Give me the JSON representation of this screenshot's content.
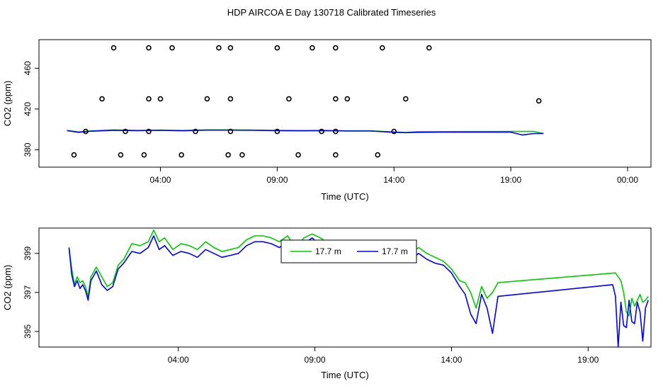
{
  "title": "HDP AIRCOA E  Day 130718  Calibrated Timeseries",
  "chart_data": [
    {
      "type": "scatter",
      "xlabel": "Time (UTC)",
      "ylabel": "CO2 (ppm)",
      "x_unit": "hours UTC",
      "xlim": [
        -1.2,
        25
      ],
      "ylim": [
        363,
        488
      ],
      "x_ticks": [
        4,
        9,
        14,
        19,
        24
      ],
      "x_tick_labels": [
        "04:00",
        "09:00",
        "14:00",
        "19:00",
        "00:00"
      ],
      "y_ticks": [
        380,
        420,
        460
      ],
      "y_tick_labels": [
        "380",
        "420",
        "460"
      ],
      "grid": false,
      "points": {
        "x": [
          2.0,
          3.5,
          4.5,
          6.5,
          7.0,
          9.0,
          10.5,
          11.5,
          13.5,
          15.5,
          1.5,
          3.5,
          4.0,
          6.0,
          7.0,
          9.5,
          11.5,
          12.0,
          14.5,
          20.2,
          0.8,
          2.5,
          3.5,
          5.5,
          7.0,
          9.0,
          10.9,
          11.5,
          14.0,
          0.3,
          2.3,
          3.3,
          4.9,
          6.9,
          7.5,
          9.9,
          11.5,
          13.3
        ],
        "y": [
          480,
          480,
          480,
          480,
          480,
          480,
          480,
          480,
          480,
          480,
          430,
          430,
          430,
          430,
          430,
          430,
          430,
          430,
          430,
          428,
          398,
          398,
          398,
          398,
          398,
          398,
          398,
          398,
          398,
          375,
          375,
          375,
          375,
          375,
          375,
          375,
          375,
          375
        ]
      },
      "series": [
        {
          "color": "#00cc00",
          "x": [
            0,
            0.5,
            1,
            2,
            3,
            4,
            5,
            6,
            7,
            8,
            9,
            10,
            11,
            12,
            13,
            14,
            14.5,
            15,
            16,
            17,
            18,
            19,
            20,
            20.4
          ],
          "y": [
            399,
            397.5,
            398.5,
            399.5,
            399,
            399.3,
            399,
            399.5,
            399.5,
            399.3,
            399,
            398.9,
            399,
            398.6,
            398.6,
            397.5,
            397,
            397.8,
            397.8,
            397.9,
            397.9,
            398,
            398,
            396
          ]
        },
        {
          "color": "#0000ff",
          "x": [
            0,
            0.5,
            1,
            2,
            3,
            4,
            5,
            6,
            7,
            8,
            9,
            10,
            11,
            12,
            13,
            14,
            14.5,
            15,
            16,
            17,
            18,
            19,
            19.5,
            20,
            20.4
          ],
          "y": [
            398.8,
            397.2,
            398.2,
            399.2,
            398.8,
            399.1,
            398.7,
            399.3,
            399.3,
            399.1,
            398.8,
            398.6,
            398.8,
            398.4,
            398.4,
            397.2,
            396.8,
            397.2,
            397.3,
            397.3,
            397.3,
            397.3,
            394.5,
            396,
            396
          ]
        }
      ]
    },
    {
      "type": "line",
      "xlabel": "Time (UTC)",
      "ylabel": "CO2 (ppm)",
      "x_unit": "hours UTC",
      "xlim": [
        -1.1,
        21.3
      ],
      "ylim": [
        394.2,
        400.3
      ],
      "x_ticks": [
        4,
        9,
        14,
        19
      ],
      "x_tick_labels": [
        "04:00",
        "09:00",
        "14:00",
        "19:00"
      ],
      "y_ticks": [
        395,
        397,
        399
      ],
      "y_tick_labels": [
        "395",
        "397",
        "399"
      ],
      "grid": false,
      "legend": {
        "placement": "top-center",
        "entries": [
          "17.7 m",
          "17.7 m"
        ]
      },
      "series": [
        {
          "name": "17.7 m",
          "color": "#00cc00",
          "x": [
            0,
            0.1,
            0.2,
            0.3,
            0.4,
            0.5,
            0.6,
            0.7,
            0.8,
            1.0,
            1.2,
            1.4,
            1.6,
            1.8,
            2.0,
            2.3,
            2.6,
            2.9,
            3.1,
            3.3,
            3.5,
            3.8,
            4.1,
            4.4,
            4.7,
            5.0,
            5.3,
            5.6,
            5.9,
            6.2,
            6.5,
            6.8,
            7.1,
            7.4,
            7.7,
            8.0,
            8.3,
            8.6,
            8.9,
            9.2,
            9.5,
            9.8,
            10.1,
            10.4,
            10.7,
            11.0,
            11.3,
            11.6,
            11.9,
            12.2,
            12.5,
            12.8,
            13.1,
            13.4,
            13.7,
            14.0,
            14.3,
            14.5,
            14.7,
            14.9,
            15.1,
            15.3,
            15.5,
            15.7,
            20.0,
            20.2,
            20.3,
            20.4,
            20.5,
            20.6,
            20.7,
            20.8,
            20.9,
            21.0,
            21.1,
            21.2
          ],
          "y": [
            399.3,
            398.2,
            397.4,
            397.8,
            397.5,
            397.6,
            397.3,
            396.8,
            397.8,
            398.3,
            397.8,
            397.3,
            397.5,
            398.4,
            398.7,
            399.5,
            399.4,
            399.6,
            400.2,
            399.6,
            399.8,
            399.2,
            399.5,
            399.4,
            399.2,
            399.6,
            399.3,
            399.1,
            399.2,
            399.3,
            399.7,
            399.9,
            399.9,
            399.8,
            399.6,
            399.9,
            399.3,
            399.8,
            400.0,
            399.8,
            399.5,
            399.4,
            399.2,
            398.9,
            399.3,
            399.4,
            399.6,
            399.1,
            399.1,
            399.3,
            399.0,
            399.3,
            399.0,
            398.8,
            398.6,
            398.2,
            397.6,
            397.5,
            397.0,
            396.2,
            397.3,
            396.7,
            397.0,
            397.5,
            398.0,
            397.6,
            397.0,
            396.0,
            395.8,
            396.7,
            396.3,
            396.6,
            396.9,
            396.5,
            396.6,
            396.8
          ]
        },
        {
          "name": "17.7 m",
          "color": "#0000ff",
          "x": [
            0,
            0.1,
            0.2,
            0.3,
            0.4,
            0.5,
            0.6,
            0.7,
            0.8,
            1.0,
            1.2,
            1.4,
            1.6,
            1.8,
            2.0,
            2.3,
            2.6,
            2.9,
            3.1,
            3.3,
            3.5,
            3.8,
            4.1,
            4.4,
            4.7,
            5.0,
            5.3,
            5.6,
            5.9,
            6.2,
            6.5,
            6.8,
            7.1,
            7.4,
            7.7,
            8.0,
            8.3,
            8.6,
            8.9,
            9.2,
            9.5,
            9.8,
            10.1,
            10.4,
            10.7,
            11.0,
            11.3,
            11.6,
            11.9,
            12.2,
            12.5,
            12.8,
            13.1,
            13.4,
            13.7,
            14.0,
            14.3,
            14.5,
            14.7,
            14.9,
            15.1,
            15.3,
            15.5,
            15.7,
            19.9,
            20.0,
            20.1,
            20.2,
            20.3,
            20.4,
            20.5,
            20.6,
            20.7,
            20.8,
            20.9,
            21.0,
            21.1,
            21.2
          ],
          "y": [
            399.3,
            397.9,
            397.3,
            397.6,
            397.2,
            397.4,
            397.1,
            396.6,
            397.6,
            398.1,
            397.4,
            397.1,
            397.3,
            398.2,
            398.5,
            399.1,
            399.0,
            399.3,
            399.9,
            399.2,
            399.4,
            398.9,
            399.1,
            399.0,
            398.8,
            399.2,
            399.0,
            398.8,
            398.9,
            399.0,
            399.4,
            399.6,
            399.6,
            399.5,
            399.3,
            399.6,
            399.0,
            399.5,
            399.8,
            399.4,
            399.1,
            399.0,
            398.9,
            398.6,
            399.0,
            399.1,
            399.3,
            398.8,
            398.8,
            399.0,
            398.7,
            399.0,
            398.7,
            398.5,
            398.4,
            398.0,
            397.3,
            396.9,
            395.9,
            395.4,
            396.9,
            396.2,
            394.9,
            396.8,
            397.4,
            396.8,
            394.2,
            396.5,
            395.3,
            395.2,
            396.6,
            395.5,
            395.4,
            396.5,
            396.0,
            394.5,
            396.2,
            396.6
          ]
        }
      ]
    }
  ]
}
